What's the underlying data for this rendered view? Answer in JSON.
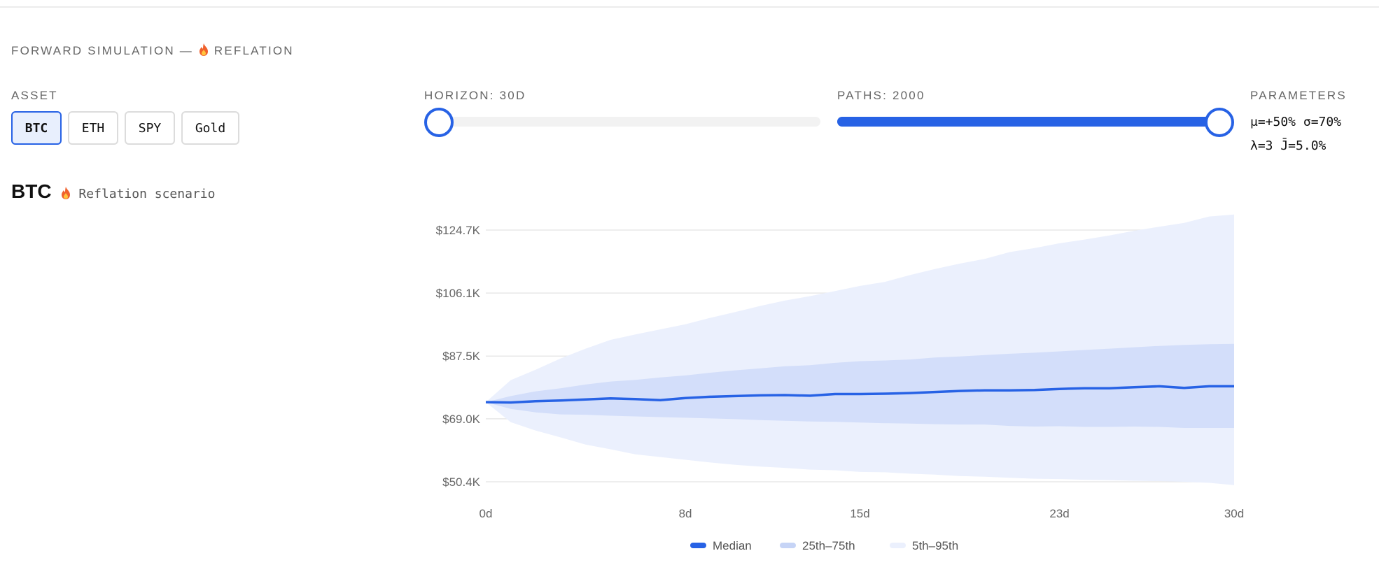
{
  "header": {
    "section_prefix": "FORWARD SIMULATION — ",
    "section_regime": "REFLATION",
    "icon": "fire-icon"
  },
  "controls": {
    "asset_label": "ASSET",
    "assets": [
      "BTC",
      "ETH",
      "SPY",
      "Gold"
    ],
    "selected_asset": "BTC",
    "horizon_label": "HORIZON: 30D",
    "horizon_fraction": 0.0,
    "paths_label": "PATHS: 2000",
    "paths_fraction": 1.0,
    "parameters_label": "PARAMETERS",
    "parameters_line1": "μ=+50% σ=70%",
    "parameters_line2": "λ=3 J̄=5.0%"
  },
  "chart_heading": {
    "asset": "BTC",
    "scenario": "Reflation scenario"
  },
  "colors": {
    "accent": "#2762e5",
    "band_inner": "#d3defa",
    "band_outer": "#ebf0fd",
    "grid": "#e8e8e8",
    "tick_text": "#666666"
  },
  "chart_data": {
    "type": "area",
    "title": "",
    "xlabel": "",
    "ylabel": "",
    "x_ticks": [
      0,
      8,
      15,
      23,
      30
    ],
    "x_tick_labels": [
      "0d",
      "8d",
      "15d",
      "23d",
      "30d"
    ],
    "y_ticks": [
      50400,
      69000,
      87500,
      106100,
      124700
    ],
    "y_tick_labels": [
      "$50.4K",
      "$69.0K",
      "$87.5K",
      "$106.1K",
      "$124.7K"
    ],
    "ylim": [
      50400,
      124700
    ],
    "xlim": [
      0,
      30
    ],
    "grid": true,
    "legend_position": "bottom-center",
    "x": [
      0,
      1,
      2,
      3,
      4,
      5,
      6,
      7,
      8,
      9,
      10,
      11,
      12,
      13,
      14,
      15,
      16,
      17,
      18,
      19,
      20,
      21,
      22,
      23,
      24,
      25,
      26,
      27,
      28,
      29,
      30
    ],
    "series": [
      {
        "name": "Median",
        "kind": "line",
        "values": [
          73900,
          73800,
          74200,
          74400,
          74700,
          75000,
          74800,
          74500,
          75100,
          75500,
          75700,
          75900,
          76000,
          75800,
          76300,
          76300,
          76400,
          76600,
          76900,
          77200,
          77400,
          77400,
          77500,
          77800,
          78000,
          78000,
          78300,
          78600,
          78100,
          78600,
          78600
        ]
      },
      {
        "name": "25th–75th",
        "kind": "band",
        "upper": [
          73900,
          75700,
          77100,
          78000,
          79100,
          80000,
          80500,
          81200,
          81800,
          82600,
          83300,
          83900,
          84500,
          84800,
          85500,
          86000,
          86200,
          86500,
          87100,
          87400,
          87800,
          88200,
          88500,
          88900,
          89300,
          89700,
          90100,
          90500,
          90800,
          91000,
          91100
        ],
        "lower": [
          73900,
          71900,
          70900,
          70300,
          70200,
          69900,
          69700,
          69500,
          69300,
          69100,
          68900,
          68600,
          68400,
          68200,
          68100,
          67900,
          67700,
          67600,
          67400,
          67300,
          67300,
          66900,
          66700,
          66800,
          66600,
          66600,
          66700,
          66600,
          66300,
          66300,
          66300
        ]
      },
      {
        "name": "5th–95th",
        "kind": "band",
        "upper": [
          73900,
          80400,
          83500,
          86800,
          89700,
          92300,
          93900,
          95400,
          96900,
          98800,
          100500,
          102300,
          103900,
          105200,
          106700,
          108200,
          109400,
          111400,
          113200,
          114800,
          116200,
          118200,
          119400,
          120800,
          121900,
          123100,
          124500,
          125700,
          126800,
          128700,
          129300
        ],
        "lower": [
          73900,
          68000,
          65500,
          63500,
          61400,
          60000,
          58500,
          57700,
          56900,
          56100,
          55400,
          54900,
          54500,
          54000,
          53800,
          53300,
          53200,
          52800,
          52500,
          52100,
          51900,
          51600,
          51300,
          51200,
          51000,
          50900,
          50700,
          50600,
          50400,
          50100,
          49400
        ]
      }
    ]
  }
}
